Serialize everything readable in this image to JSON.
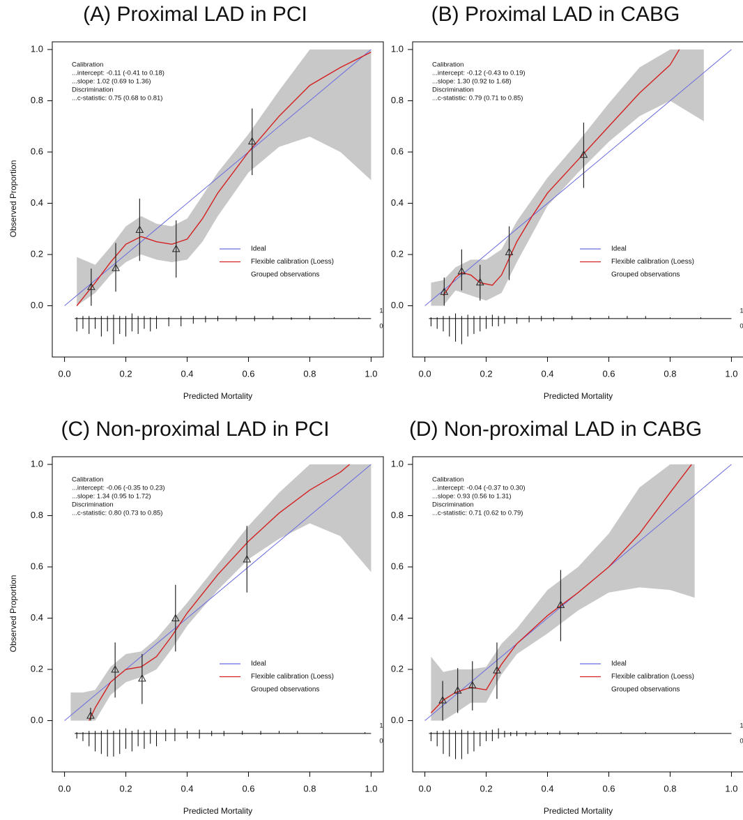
{
  "chart_data": [
    {
      "type": "line",
      "title": "(A) Proximal LAD in PCI",
      "xlabel": "Predicted Mortality",
      "ylabel": "Observed Proportion",
      "annotation": [
        "Calibration",
        "...intercept: -0.11 (-0.41 to 0.18)",
        "...slope: 1.02 (0.69 to 1.36)",
        "Discrimination",
        "...c-statistic: 0.75 (0.68 to 0.81)"
      ],
      "xlim": [
        -0.04,
        1.04
      ],
      "ylim": [
        -0.2,
        1.03
      ],
      "xticks": [
        {
          "value": 0,
          "label": "0.0"
        },
        0.2,
        0.4,
        0.6,
        0.8,
        {
          "value": 1,
          "label": "1.0"
        }
      ],
      "yticks": [
        {
          "value": 0,
          "label": "0.0"
        },
        0.2,
        0.4,
        0.6,
        0.8,
        {
          "value": 1,
          "label": "1.0"
        }
      ],
      "band": {
        "color": "#c8c8c8",
        "x": [
          0.04,
          0.1,
          0.15,
          0.2,
          0.25,
          0.3,
          0.35,
          0.4,
          0.45,
          0.5,
          0.6,
          0.7,
          0.8,
          0.9,
          1.0
        ],
        "lower": [
          0.0,
          0.05,
          0.12,
          0.17,
          0.2,
          0.18,
          0.17,
          0.18,
          0.25,
          0.35,
          0.52,
          0.62,
          0.66,
          0.6,
          0.49
        ],
        "upper": [
          0.19,
          0.16,
          0.23,
          0.31,
          0.35,
          0.32,
          0.31,
          0.34,
          0.43,
          0.52,
          0.67,
          0.84,
          1.0,
          1.0,
          1.0
        ]
      },
      "series": [
        {
          "name": "Ideal",
          "color": "#6a6ae0",
          "x": [
            0,
            1
          ],
          "values": [
            0,
            1
          ]
        },
        {
          "name": "Flexible calibration (Loess)",
          "color": "#d42020",
          "x": [
            0.04,
            0.1,
            0.15,
            0.2,
            0.25,
            0.3,
            0.35,
            0.4,
            0.45,
            0.5,
            0.6,
            0.7,
            0.8,
            0.9,
            1.0
          ],
          "values": [
            0.0,
            0.09,
            0.17,
            0.24,
            0.27,
            0.25,
            0.24,
            0.26,
            0.34,
            0.44,
            0.6,
            0.74,
            0.86,
            0.93,
            0.99
          ]
        },
        {
          "name": "Grouped observations",
          "color": "#222222",
          "x": [
            0.087,
            0.167,
            0.245,
            0.364,
            0.612
          ],
          "values": [
            0.074,
            0.148,
            0.297,
            0.222,
            0.642
          ],
          "lower": [
            0.0,
            0.055,
            0.175,
            0.11,
            0.51
          ],
          "upper": [
            0.145,
            0.245,
            0.418,
            0.333,
            0.77
          ]
        }
      ],
      "rug": {
        "labels": [
          "1",
          "0"
        ],
        "x": [
          0.04,
          0.06,
          0.08,
          0.1,
          0.12,
          0.14,
          0.16,
          0.18,
          0.2,
          0.22,
          0.24,
          0.26,
          0.28,
          0.3,
          0.34,
          0.38,
          0.42,
          0.46,
          0.5,
          0.56,
          0.62,
          0.68,
          0.74,
          0.8,
          0.88,
          0.96
        ],
        "events": [
          0.005,
          0.01,
          0.01,
          0.005,
          0.01,
          0.01,
          0.015,
          0.01,
          0.01,
          0.02,
          0.01,
          0.01,
          0.005,
          0.01,
          0.005,
          0.01,
          0.01,
          0.01,
          0.01,
          0.01,
          0.01,
          0.01,
          0.005,
          0.01,
          0.005,
          0.005
        ],
        "nonevents": [
          0.05,
          0.04,
          0.06,
          0.04,
          0.07,
          0.05,
          0.1,
          0.06,
          0.07,
          0.05,
          0.06,
          0.04,
          0.05,
          0.04,
          0.03,
          0.03,
          0.02,
          0.015,
          0.01,
          0.01,
          0.01,
          0.005,
          0.005,
          0.005,
          0,
          0
        ]
      }
    },
    {
      "type": "line",
      "title": "(B) Proximal LAD in CABG",
      "xlabel": "Predicted Mortality",
      "annotation": [
        "Calibration",
        "...intercept: -0.12 (-0.43 to 0.19)",
        "...slope: 1.30 (0.92 to 1.68)",
        "Discrimination",
        "...c-statistic: 0.79 (0.71 to 0.85)"
      ],
      "xlim": [
        -0.04,
        1.04
      ],
      "ylim": [
        -0.2,
        1.03
      ],
      "xticks": [
        {
          "value": 0,
          "label": "0.0"
        },
        0.2,
        0.4,
        0.6,
        0.8,
        {
          "value": 1,
          "label": "1.0"
        }
      ],
      "yticks": [
        {
          "value": 0,
          "label": "0.0"
        },
        0.2,
        0.4,
        0.6,
        0.8,
        {
          "value": 1,
          "label": "1.0"
        }
      ],
      "band": {
        "color": "#c8c8c8",
        "x": [
          0.02,
          0.06,
          0.1,
          0.15,
          0.2,
          0.25,
          0.3,
          0.4,
          0.5,
          0.6,
          0.7,
          0.8,
          0.91
        ],
        "lower": [
          0.0,
          0.0,
          0.06,
          0.04,
          0.02,
          0.05,
          0.17,
          0.39,
          0.52,
          0.64,
          0.74,
          0.8,
          0.72
        ],
        "upper": [
          0.09,
          0.1,
          0.15,
          0.18,
          0.18,
          0.22,
          0.33,
          0.5,
          0.64,
          0.79,
          0.93,
          1.0,
          1.0
        ]
      },
      "series": [
        {
          "name": "Ideal",
          "color": "#6a6ae0",
          "x": [
            0,
            1
          ],
          "values": [
            0,
            1
          ]
        },
        {
          "name": "Flexible calibration (Loess)",
          "color": "#d42020",
          "x": [
            0.06,
            0.1,
            0.12,
            0.15,
            0.18,
            0.22,
            0.25,
            0.3,
            0.35,
            0.4,
            0.5,
            0.6,
            0.7,
            0.8,
            0.83
          ],
          "values": [
            0.04,
            0.11,
            0.13,
            0.12,
            0.09,
            0.08,
            0.12,
            0.25,
            0.35,
            0.44,
            0.57,
            0.7,
            0.83,
            0.94,
            1.0
          ]
        },
        {
          "name": "Grouped observations",
          "color": "#222222",
          "x": [
            0.063,
            0.12,
            0.18,
            0.275,
            0.518
          ],
          "values": [
            0.055,
            0.135,
            0.092,
            0.21,
            0.59
          ],
          "lower": [
            0.0,
            0.06,
            0.02,
            0.1,
            0.46
          ],
          "upper": [
            0.11,
            0.22,
            0.16,
            0.31,
            0.715
          ]
        }
      ],
      "rug": {
        "labels": [
          "1",
          "0"
        ],
        "x": [
          0.02,
          0.04,
          0.06,
          0.08,
          0.1,
          0.12,
          0.14,
          0.16,
          0.18,
          0.2,
          0.22,
          0.24,
          0.26,
          0.3,
          0.34,
          0.38,
          0.42,
          0.48,
          0.54,
          0.6,
          0.66,
          0.72,
          0.8,
          0.9
        ],
        "events": [
          0.005,
          0.005,
          0.01,
          0.01,
          0.02,
          0.01,
          0.015,
          0.01,
          0.01,
          0.01,
          0.015,
          0.01,
          0.01,
          0.005,
          0.01,
          0.01,
          0.005,
          0.01,
          0.005,
          0.01,
          0.01,
          0.01,
          0.005,
          0.005
        ],
        "nonevents": [
          0.03,
          0.04,
          0.05,
          0.07,
          0.09,
          0.1,
          0.07,
          0.06,
          0.05,
          0.04,
          0.03,
          0.03,
          0.02,
          0.02,
          0.015,
          0.01,
          0.01,
          0.005,
          0.005,
          0,
          0,
          0,
          0,
          0
        ]
      }
    },
    {
      "type": "line",
      "title": "(C) Non-proximal LAD in PCI",
      "xlabel": "Predicted Mortality",
      "ylabel": "Observed Proportion",
      "annotation": [
        "Calibration",
        "...intercept: -0.06 (-0.35 to 0.23)",
        "...slope: 1.34 (0.95 to 1.72)",
        "Discrimination",
        "...c-statistic: 0.80 (0.73 to 0.85)"
      ],
      "xlim": [
        -0.04,
        1.04
      ],
      "ylim": [
        -0.2,
        1.03
      ],
      "xticks": [
        {
          "value": 0,
          "label": "0.0"
        },
        0.2,
        0.4,
        0.6,
        0.8,
        {
          "value": 1,
          "label": "1.0"
        }
      ],
      "yticks": [
        {
          "value": 0,
          "label": "0.0"
        },
        0.2,
        0.4,
        0.6,
        0.8,
        {
          "value": 1,
          "label": "1.0"
        }
      ],
      "band": {
        "color": "#c8c8c8",
        "x": [
          0.02,
          0.06,
          0.1,
          0.15,
          0.2,
          0.25,
          0.3,
          0.35,
          0.4,
          0.5,
          0.6,
          0.7,
          0.8,
          0.9,
          1.0
        ],
        "lower": [
          0.0,
          0.0,
          0.0,
          0.1,
          0.15,
          0.17,
          0.2,
          0.28,
          0.37,
          0.51,
          0.63,
          0.71,
          0.77,
          0.72,
          0.58
        ],
        "upper": [
          0.11,
          0.11,
          0.12,
          0.21,
          0.26,
          0.27,
          0.32,
          0.39,
          0.46,
          0.61,
          0.76,
          0.89,
          1.0,
          1.0,
          1.0
        ]
      },
      "series": [
        {
          "name": "Ideal",
          "color": "#6a6ae0",
          "x": [
            0,
            1
          ],
          "values": [
            0,
            1
          ]
        },
        {
          "name": "Flexible calibration (Loess)",
          "color": "#d42020",
          "x": [
            0.08,
            0.1,
            0.15,
            0.2,
            0.25,
            0.3,
            0.35,
            0.4,
            0.5,
            0.6,
            0.7,
            0.8,
            0.9,
            0.93
          ],
          "values": [
            0.0,
            0.05,
            0.15,
            0.2,
            0.21,
            0.25,
            0.33,
            0.42,
            0.57,
            0.7,
            0.81,
            0.9,
            0.97,
            1.0
          ]
        },
        {
          "name": "Grouped observations",
          "color": "#222222",
          "x": [
            0.085,
            0.165,
            0.253,
            0.362,
            0.595
          ],
          "values": [
            0.02,
            0.2,
            0.165,
            0.4,
            0.63
          ],
          "lower": [
            0.0,
            0.09,
            0.065,
            0.27,
            0.5
          ],
          "upper": [
            0.05,
            0.305,
            0.26,
            0.53,
            0.76
          ]
        }
      ],
      "rug": {
        "labels": [
          "1",
          "0"
        ],
        "x": [
          0.04,
          0.06,
          0.08,
          0.1,
          0.12,
          0.14,
          0.16,
          0.18,
          0.2,
          0.22,
          0.24,
          0.26,
          0.28,
          0.3,
          0.33,
          0.36,
          0.4,
          0.44,
          0.48,
          0.52,
          0.58,
          0.64,
          0.7,
          0.76,
          0.84,
          0.98
        ],
        "events": [
          0.005,
          0.005,
          0.01,
          0.01,
          0.01,
          0.015,
          0.01,
          0.015,
          0.02,
          0.01,
          0.015,
          0.01,
          0.015,
          0.01,
          0.015,
          0.02,
          0.01,
          0.015,
          0.01,
          0.01,
          0.01,
          0.01,
          0.01,
          0.01,
          0.005,
          0.005
        ],
        "nonevents": [
          0.02,
          0.03,
          0.05,
          0.07,
          0.08,
          0.09,
          0.09,
          0.08,
          0.06,
          0.07,
          0.05,
          0.06,
          0.04,
          0.05,
          0.03,
          0.03,
          0.02,
          0.02,
          0.01,
          0.01,
          0.005,
          0.005,
          0,
          0,
          0,
          0
        ]
      }
    },
    {
      "type": "line",
      "title": "(D) Non-proximal LAD in CABG",
      "xlabel": "Predicted Mortality",
      "annotation": [
        "Calibration",
        "...intercept: -0.04 (-0.37 to 0.30)",
        "...slope: 0.93 (0.56 to 1.31)",
        "Discrimination",
        "...c-statistic: 0.71 (0.62 to 0.79)"
      ],
      "xlim": [
        -0.04,
        1.04
      ],
      "ylim": [
        -0.2,
        1.03
      ],
      "xticks": [
        {
          "value": 0,
          "label": "0.0"
        },
        0.2,
        0.4,
        0.6,
        0.8,
        {
          "value": 1,
          "label": "1.0"
        }
      ],
      "yticks": [
        {
          "value": 0,
          "label": "0.0"
        },
        0.2,
        0.4,
        0.6,
        0.8,
        {
          "value": 1,
          "label": "1.0"
        }
      ],
      "band": {
        "color": "#c8c8c8",
        "x": [
          0.02,
          0.06,
          0.1,
          0.15,
          0.2,
          0.25,
          0.3,
          0.4,
          0.5,
          0.6,
          0.7,
          0.8,
          0.88
        ],
        "lower": [
          0.0,
          0.0,
          0.03,
          0.07,
          0.07,
          0.18,
          0.26,
          0.34,
          0.43,
          0.5,
          0.52,
          0.51,
          0.48
        ],
        "upper": [
          0.25,
          0.19,
          0.2,
          0.2,
          0.21,
          0.3,
          0.36,
          0.51,
          0.6,
          0.73,
          0.91,
          1.0,
          1.0
        ]
      },
      "series": [
        {
          "name": "Ideal",
          "color": "#6a6ae0",
          "x": [
            0,
            1
          ],
          "values": [
            0,
            1
          ]
        },
        {
          "name": "Flexible calibration (Loess)",
          "color": "#d42020",
          "x": [
            0.02,
            0.06,
            0.1,
            0.15,
            0.2,
            0.25,
            0.3,
            0.4,
            0.5,
            0.6,
            0.7,
            0.8,
            0.87
          ],
          "values": [
            0.03,
            0.08,
            0.11,
            0.13,
            0.12,
            0.22,
            0.3,
            0.41,
            0.5,
            0.6,
            0.73,
            0.89,
            1.0
          ]
        },
        {
          "name": "Grouped observations",
          "color": "#222222",
          "x": [
            0.058,
            0.107,
            0.155,
            0.235,
            0.443
          ],
          "values": [
            0.08,
            0.118,
            0.138,
            0.197,
            0.452
          ],
          "lower": [
            0.0,
            0.03,
            0.04,
            0.085,
            0.31
          ],
          "upper": [
            0.155,
            0.205,
            0.232,
            0.305,
            0.588
          ]
        }
      ],
      "rug": {
        "labels": [
          "1",
          "0"
        ],
        "x": [
          0.02,
          0.04,
          0.06,
          0.08,
          0.1,
          0.12,
          0.14,
          0.16,
          0.18,
          0.2,
          0.22,
          0.24,
          0.26,
          0.28,
          0.3,
          0.33,
          0.36,
          0.4,
          0.44,
          0.5,
          0.56,
          0.64,
          0.72,
          0.88
        ],
        "events": [
          0.005,
          0.01,
          0.01,
          0.015,
          0.01,
          0.015,
          0.01,
          0.01,
          0.005,
          0.01,
          0.015,
          0.02,
          0.01,
          0.005,
          0.01,
          0.005,
          0.01,
          0.005,
          0.01,
          0.005,
          0.005,
          0.005,
          0.005,
          0.005
        ],
        "nonevents": [
          0.03,
          0.05,
          0.08,
          0.09,
          0.1,
          0.1,
          0.08,
          0.07,
          0.05,
          0.03,
          0.03,
          0.02,
          0.015,
          0.01,
          0.01,
          0.01,
          0.005,
          0.005,
          0.005,
          0.005,
          0,
          0,
          0,
          0
        ]
      }
    }
  ]
}
